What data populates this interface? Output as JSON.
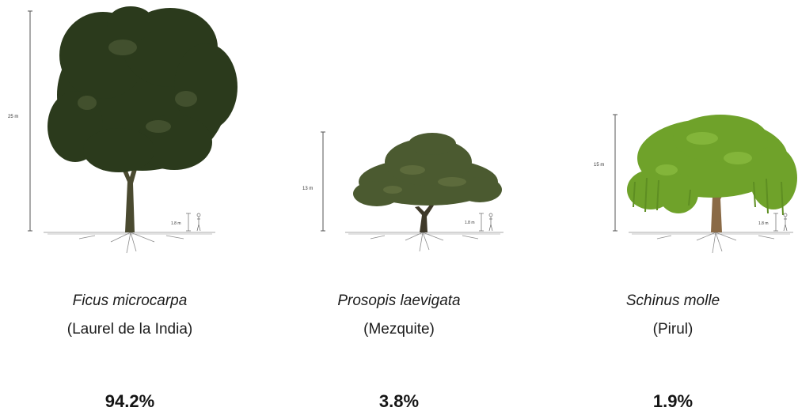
{
  "trees": [
    {
      "species": "Ficus microcarpa",
      "common_name": "(Laurel de la India)",
      "height_label": "25 m",
      "reference_label": "1.8 m",
      "percentage": "94.2%",
      "crown_color": "#2b3a1c"
    },
    {
      "species": "Prosopis laevigata",
      "common_name": "(Mezquite)",
      "height_label": "13 m",
      "reference_label": "1.8 m",
      "percentage": "3.8%",
      "crown_color": "#4b5a30"
    },
    {
      "species": "Schinus molle",
      "common_name": "(Pirul)",
      "height_label": "15 m",
      "reference_label": "1.8 m",
      "percentage": "1.9%",
      "crown_color": "#6fa22a"
    }
  ]
}
